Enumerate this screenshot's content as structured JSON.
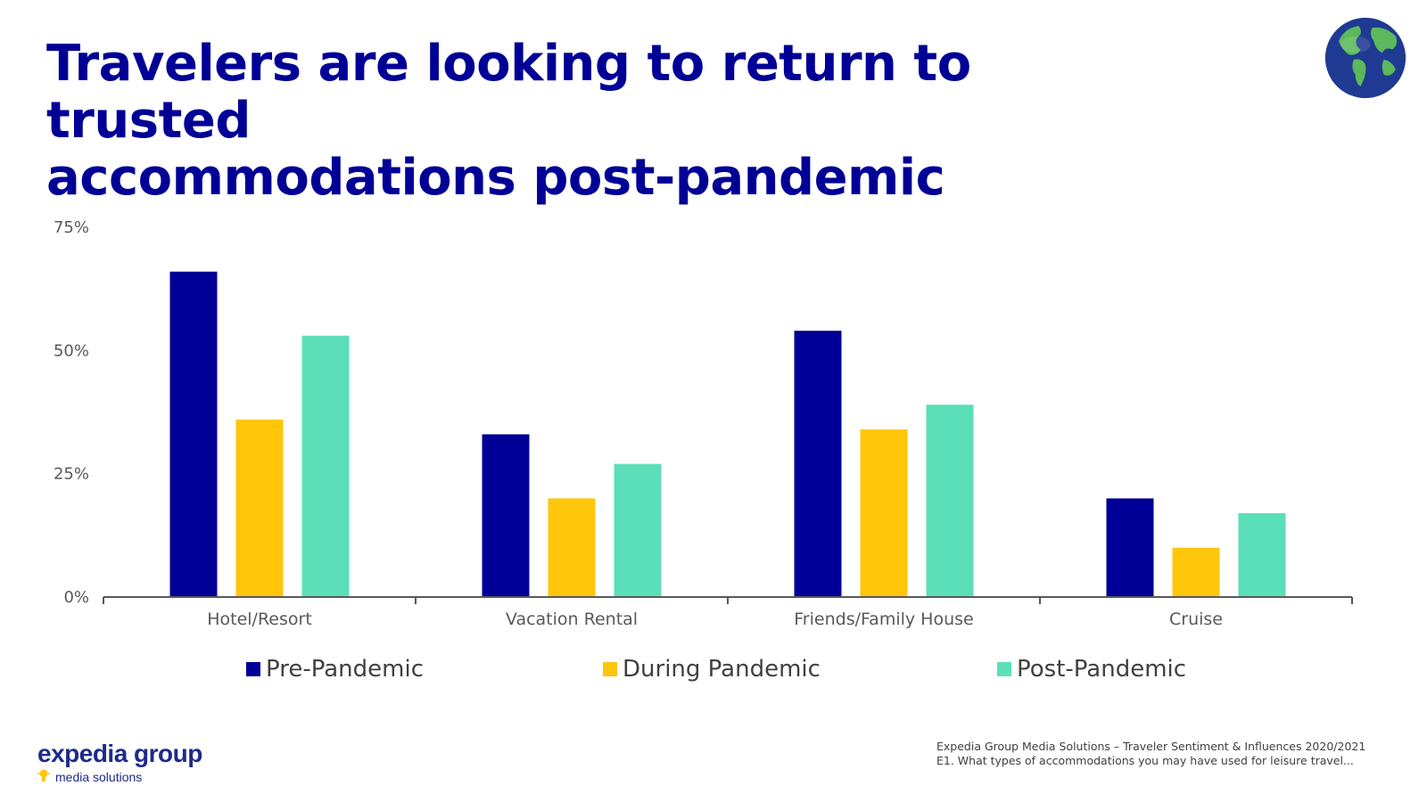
{
  "slide": {
    "title_line1": "Travelers are looking to return to trusted",
    "title_line2": "accommodations post-pandemic",
    "logo_text": "expedia group",
    "logo_subtext": "media solutions",
    "source_line1": "Expedia Group Media Solutions – Traveler Sentiment & Influences 2020/2021",
    "source_line2": "E1. What types of accommodations you may have used for leisure travel..."
  },
  "chart_data": {
    "type": "bar",
    "title": "Travelers are looking to return to trusted accommodations post-pandemic",
    "categories": [
      "Hotel/Resort",
      "Vacation Rental",
      "Friends/Family House",
      "Cruise"
    ],
    "series": [
      {
        "name": "Pre-Pandemic",
        "color": "#000096",
        "values": [
          66,
          33,
          54,
          20
        ]
      },
      {
        "name": "During Pandemic",
        "color": "#FFC60B",
        "values": [
          36,
          20,
          34,
          10
        ]
      },
      {
        "name": "Post-Pandemic",
        "color": "#5BDFB8",
        "values": [
          53,
          27,
          39,
          17
        ]
      }
    ],
    "ylim": [
      0,
      75
    ],
    "yticks": [
      0,
      25,
      50,
      75
    ],
    "ytick_labels": [
      "0%",
      "25%",
      "50%",
      "75%"
    ],
    "xlabel": "",
    "ylabel": "",
    "grid": false,
    "legend": "bottom"
  }
}
